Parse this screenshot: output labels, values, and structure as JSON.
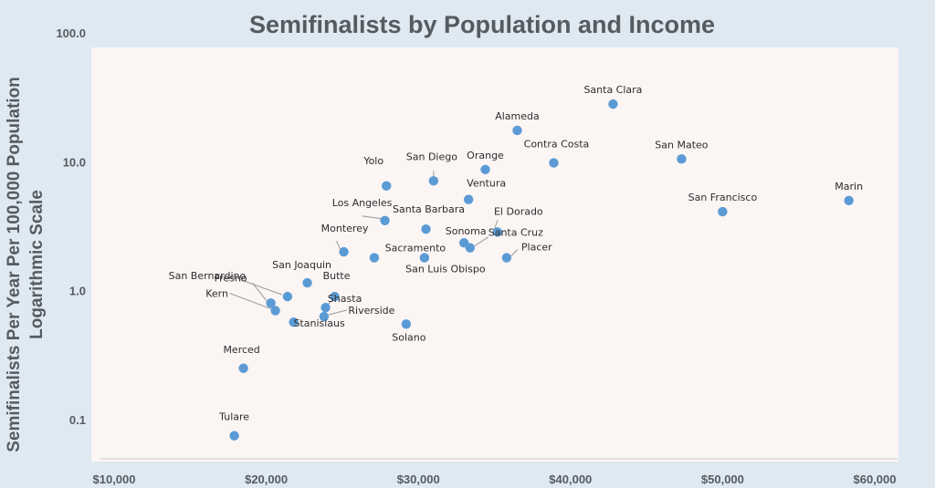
{
  "chart_data": {
    "type": "scatter",
    "title": "Semifinalists by Population and Income",
    "xlabel": "",
    "ylabel": "Semifinalists Per Year Per 100,000 Population",
    "ylabel2": "Logarithmic Scale",
    "y_scale": "log",
    "xlim": [
      10000,
      60000
    ],
    "ylim": [
      0.05,
      100
    ],
    "x_ticks": [
      10000,
      20000,
      30000,
      40000,
      50000,
      60000
    ],
    "x_tick_labels": [
      "$10,000",
      "$20,000",
      "$30,000",
      "$40,000",
      "$50,000",
      "$60,000"
    ],
    "y_ticks": [
      0.1,
      1,
      10,
      100
    ],
    "y_tick_labels": [
      "0.1",
      "1.0",
      "10.0",
      "100.0"
    ],
    "grid": false,
    "point_color": "#5b9bd5",
    "points": [
      {
        "label": "Santa Clara",
        "x": 42800,
        "y": 28
      },
      {
        "label": "Alameda",
        "x": 36500,
        "y": 17.5
      },
      {
        "label": "Orange",
        "x": 34400,
        "y": 8.7
      },
      {
        "label": "Contra Costa",
        "x": 38900,
        "y": 9.8
      },
      {
        "label": "San Mateo",
        "x": 47300,
        "y": 10.5
      },
      {
        "label": "Marin",
        "x": 58300,
        "y": 5.0
      },
      {
        "label": "San Francisco",
        "x": 50000,
        "y": 4.1
      },
      {
        "label": "Yolo",
        "x": 27900,
        "y": 6.5
      },
      {
        "label": "San Diego",
        "x": 31000,
        "y": 7.1
      },
      {
        "label": "Ventura",
        "x": 33300,
        "y": 5.1
      },
      {
        "label": "Los Angeles",
        "x": 27800,
        "y": 3.5
      },
      {
        "label": "Santa Barbara",
        "x": 30500,
        "y": 3.0
      },
      {
        "label": "El Dorado",
        "x": 35200,
        "y": 2.85
      },
      {
        "label": "Sonoma",
        "x": 33000,
        "y": 2.35
      },
      {
        "label": "Santa Cruz",
        "x": 33400,
        "y": 2.15
      },
      {
        "label": "Placer",
        "x": 35800,
        "y": 1.8
      },
      {
        "label": "Monterey",
        "x": 25100,
        "y": 2.0
      },
      {
        "label": "Sacramento",
        "x": 27100,
        "y": 1.8
      },
      {
        "label": "San Luis Obispo",
        "x": 30400,
        "y": 1.8
      },
      {
        "label": "San Bernardino",
        "x": 21400,
        "y": 0.9
      },
      {
        "label": "San Joaquin",
        "x": 22700,
        "y": 1.15
      },
      {
        "label": "Butte",
        "x": 24500,
        "y": 0.9
      },
      {
        "label": "Shasta",
        "x": 23900,
        "y": 0.74
      },
      {
        "label": "Fresno",
        "x": 20300,
        "y": 0.8
      },
      {
        "label": "Kern",
        "x": 20600,
        "y": 0.7
      },
      {
        "label": "Riverside",
        "x": 23800,
        "y": 0.63
      },
      {
        "label": "Stanislaus",
        "x": 21800,
        "y": 0.57
      },
      {
        "label": "Solano",
        "x": 29200,
        "y": 0.55
      },
      {
        "label": "Merced",
        "x": 18500,
        "y": 0.25
      },
      {
        "label": "Tulare",
        "x": 17900,
        "y": 0.075
      }
    ]
  }
}
